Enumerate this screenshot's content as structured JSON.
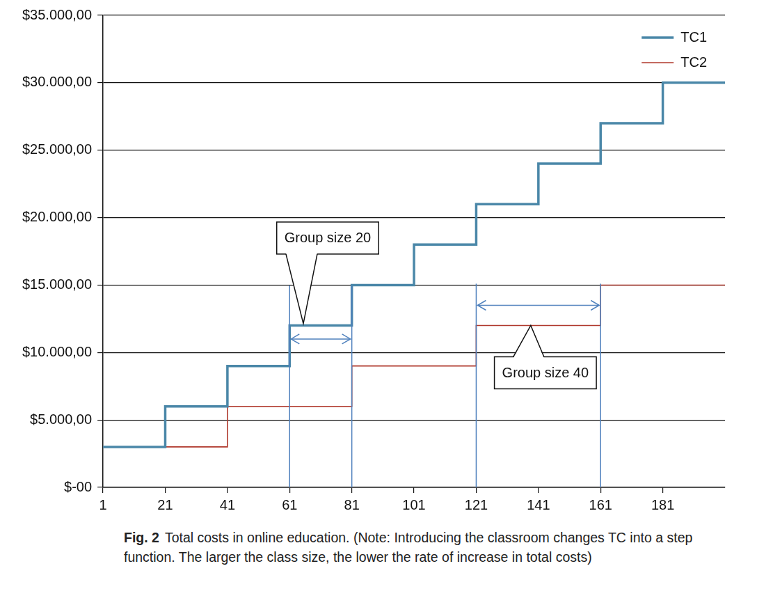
{
  "chart_data": {
    "type": "step",
    "x": [
      1,
      21,
      41,
      61,
      81,
      101,
      121,
      141,
      161,
      181,
      201
    ],
    "series": [
      {
        "name": "TC1",
        "color": "#4a87a8",
        "values": [
          3000,
          6000,
          9000,
          12000,
          15000,
          18000,
          21000,
          24000,
          27000,
          30000,
          30000
        ]
      },
      {
        "name": "TC2",
        "color": "#b0392d",
        "values": [
          3000,
          3000,
          6000,
          6000,
          9000,
          9000,
          12000,
          12000,
          15000,
          15000,
          15000
        ]
      }
    ],
    "xlim": [
      1,
      201
    ],
    "xticks": [
      1,
      21,
      41,
      61,
      81,
      101,
      121,
      141,
      161,
      181
    ],
    "ylim": [
      0,
      35000
    ],
    "yticks": [
      {
        "value": 0,
        "label": "$-00"
      },
      {
        "value": 5000,
        "label": "$5.000,00"
      },
      {
        "value": 10000,
        "label": "$10.000,00"
      },
      {
        "value": 15000,
        "label": "$15.000,00"
      },
      {
        "value": 20000,
        "label": "$20.000,00"
      },
      {
        "value": 25000,
        "label": "$25.000,00"
      },
      {
        "value": 30000,
        "label": "$30.000,00"
      },
      {
        "value": 35000,
        "label": "$35.000,00"
      }
    ],
    "grid": true,
    "legend": "top-right",
    "annotations": [
      {
        "text": "Group size 20",
        "x": [
          61,
          81
        ],
        "y": 11000
      },
      {
        "text": "Group size 40",
        "x": [
          121,
          161
        ],
        "y": 13500
      }
    ],
    "caption": {
      "label": "Fig. 2",
      "text": "Total costs in online education. (Note: Introducing the classroom changes TC into a step function. The larger the class size, the lower the rate of increase in total costs)"
    }
  }
}
